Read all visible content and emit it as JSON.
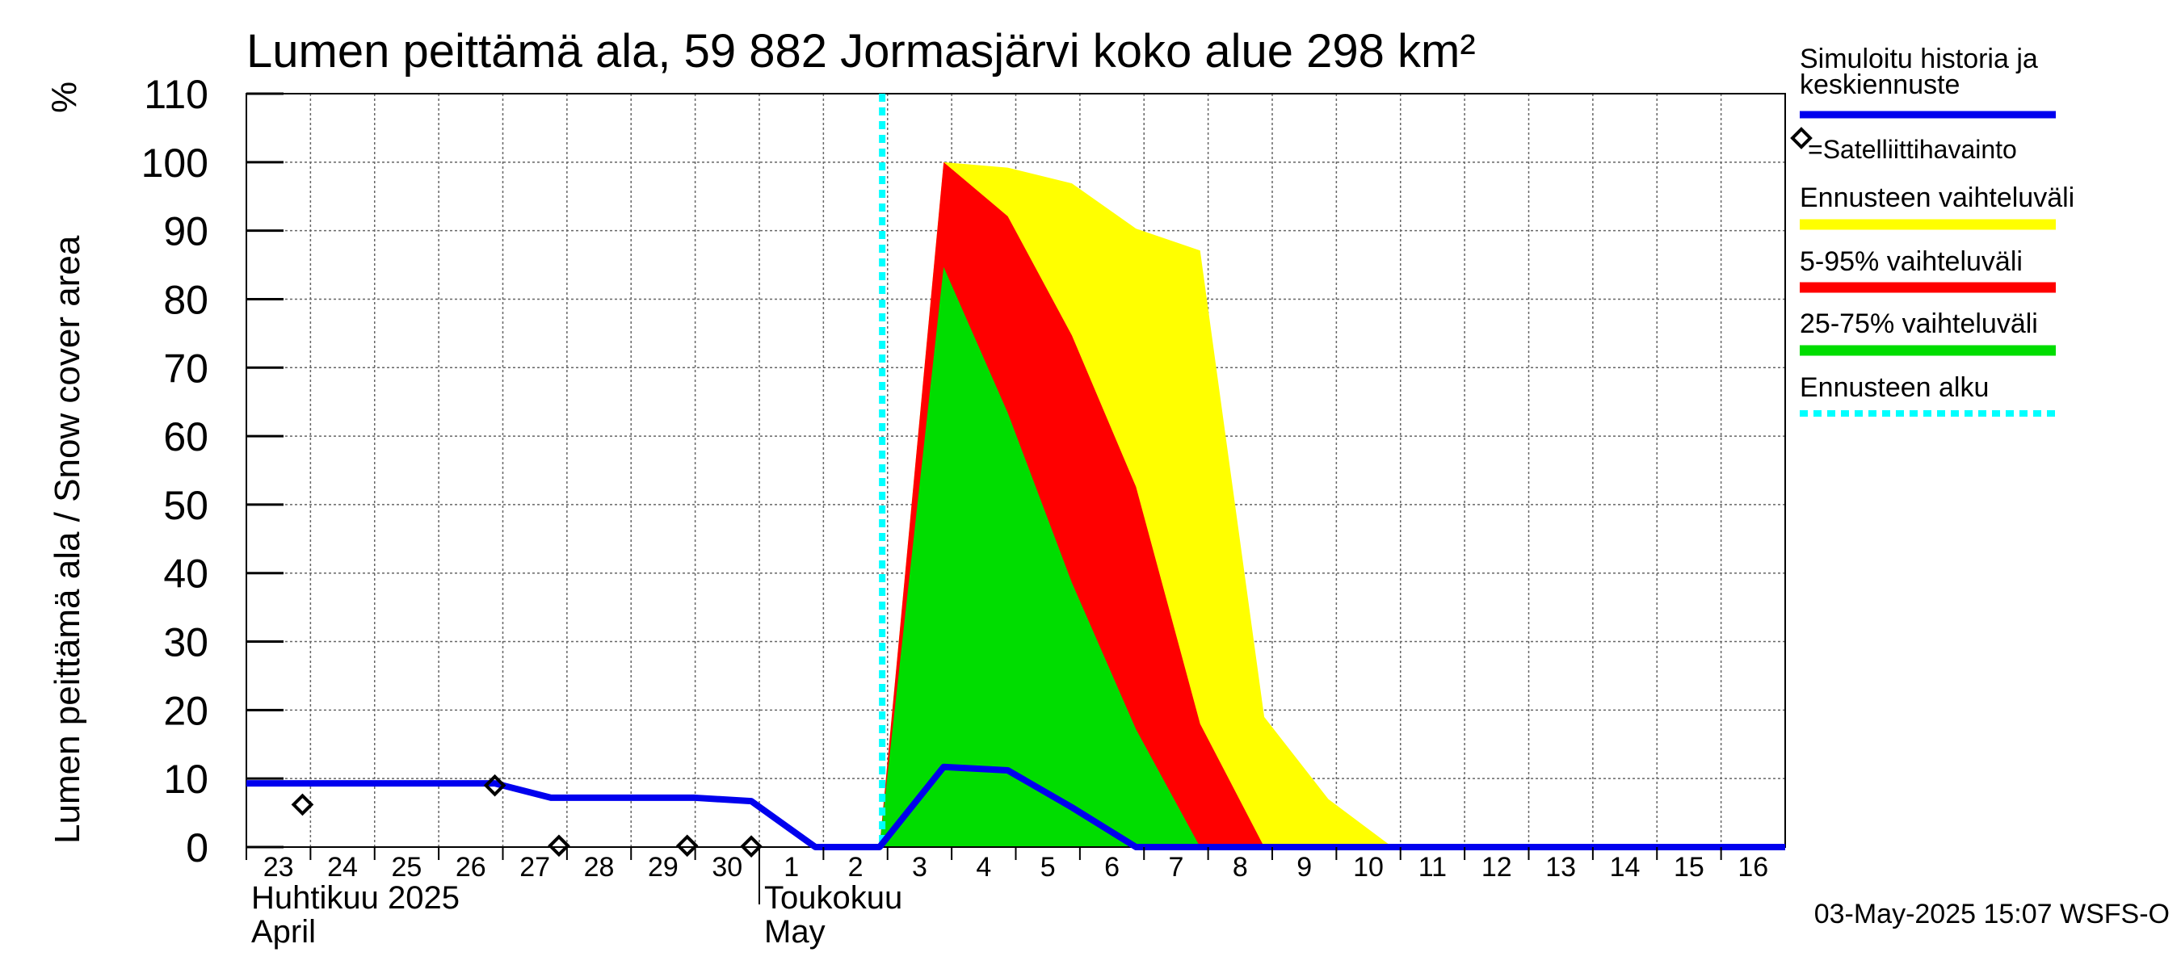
{
  "chart_data": {
    "type": "area",
    "title": "Lumen peittämä ala, 59 882 Jormasjärvi koko alue 298 km²",
    "ylabel": "Lumen peittämä ala / Snow cover area",
    "yunit": "%",
    "ylim": [
      0,
      110
    ],
    "yticks": [
      0,
      10,
      20,
      30,
      40,
      50,
      60,
      70,
      80,
      90,
      100,
      110
    ],
    "xlim": [
      "2025-04-23",
      "2025-05-17"
    ],
    "xticks": [
      {
        "date": "2025-04-23",
        "label": "23"
      },
      {
        "date": "2025-04-24",
        "label": "24"
      },
      {
        "date": "2025-04-25",
        "label": "25"
      },
      {
        "date": "2025-04-26",
        "label": "26"
      },
      {
        "date": "2025-04-27",
        "label": "27"
      },
      {
        "date": "2025-04-28",
        "label": "28"
      },
      {
        "date": "2025-04-29",
        "label": "29"
      },
      {
        "date": "2025-04-30",
        "label": "30"
      },
      {
        "date": "2025-05-01",
        "label": "1"
      },
      {
        "date": "2025-05-02",
        "label": "2"
      },
      {
        "date": "2025-05-03",
        "label": "3"
      },
      {
        "date": "2025-05-04",
        "label": "4"
      },
      {
        "date": "2025-05-05",
        "label": "5"
      },
      {
        "date": "2025-05-06",
        "label": "6"
      },
      {
        "date": "2025-05-07",
        "label": "7"
      },
      {
        "date": "2025-05-08",
        "label": "8"
      },
      {
        "date": "2025-05-09",
        "label": "9"
      },
      {
        "date": "2025-05-10",
        "label": "10"
      },
      {
        "date": "2025-05-11",
        "label": "11"
      },
      {
        "date": "2025-05-12",
        "label": "12"
      },
      {
        "date": "2025-05-13",
        "label": "13"
      },
      {
        "date": "2025-05-14",
        "label": "14"
      },
      {
        "date": "2025-05-15",
        "label": "15"
      },
      {
        "date": "2025-05-16",
        "label": "16"
      }
    ],
    "month_labels": [
      {
        "date": "2025-04-23",
        "line1": "Huhtikuu  2025",
        "line2": "April"
      },
      {
        "date": "2025-05-01",
        "line1": "Toukokuu",
        "line2": "May"
      }
    ],
    "month_divider": "2025-05-01",
    "forecast_start": "2025-05-02T22:00",
    "grid": true,
    "legend": {
      "placement": "right",
      "items": [
        {
          "label": "Simuloitu historia ja keskiennuste",
          "lines": [
            "Simuloitu historia ja",
            "keskiennuste"
          ],
          "kind": "line",
          "color": "#0000ee"
        },
        {
          "label": "=Satelliittihavainto",
          "kind": "marker",
          "color": "#000000"
        },
        {
          "label": "Ennusteen vaihteluväli",
          "kind": "band",
          "color": "#ffff00"
        },
        {
          "label": "5-95% vaihteluväli",
          "kind": "band",
          "color": "#ff0000"
        },
        {
          "label": "25-75% vaihteluväli",
          "kind": "band",
          "color": "#00dd00"
        },
        {
          "label": "Ennusteen alku",
          "kind": "dashed",
          "color": "#00ffff"
        }
      ]
    },
    "series": [
      {
        "name": "Simuloitu historia ja keskiennuste",
        "kind": "line",
        "color": "#0000ee",
        "points": [
          [
            "2025-04-23T00:00",
            9.3
          ],
          [
            "2025-04-26T21:00",
            9.3
          ],
          [
            "2025-04-27T18:00",
            7.2
          ],
          [
            "2025-04-30T00:00",
            7.2
          ],
          [
            "2025-04-30T21:00",
            6.7
          ],
          [
            "2025-05-01T21:00",
            0
          ],
          [
            "2025-05-02T21:00",
            0
          ],
          [
            "2025-05-03T21:00",
            11.7
          ],
          [
            "2025-05-04T21:00",
            11.2
          ],
          [
            "2025-05-05T21:00",
            5.8
          ],
          [
            "2025-05-06T21:00",
            0
          ],
          [
            "2025-05-17T00:00",
            0
          ]
        ]
      },
      {
        "name": "Satelliittihavainto",
        "kind": "marker",
        "color": "#000000",
        "points": [
          [
            "2025-04-23T21:00",
            6.2
          ],
          [
            "2025-04-26T21:00",
            9.0
          ],
          [
            "2025-04-27T21:00",
            0.2
          ],
          [
            "2025-04-29T21:00",
            0.2
          ],
          [
            "2025-04-30T21:00",
            0.1
          ]
        ]
      },
      {
        "name": "Ennusteen vaihteluväli",
        "kind": "band",
        "color": "#ffff00",
        "upper": [
          [
            "2025-05-02T21:00",
            0
          ],
          [
            "2025-05-03T21:00",
            100
          ],
          [
            "2025-05-04T21:00",
            99.2
          ],
          [
            "2025-05-05T21:00",
            96.9
          ],
          [
            "2025-05-06T21:00",
            90.3
          ],
          [
            "2025-05-07T21:00",
            87.1
          ],
          [
            "2025-05-08T21:00",
            19
          ],
          [
            "2025-05-09T21:00",
            7
          ],
          [
            "2025-05-10T21:00",
            0
          ]
        ],
        "lower": [
          [
            "2025-05-02T21:00",
            0
          ],
          [
            "2025-05-10T21:00",
            0
          ]
        ]
      },
      {
        "name": "5-95% vaihteluväli",
        "kind": "band",
        "color": "#ff0000",
        "upper": [
          [
            "2025-05-02T21:00",
            0
          ],
          [
            "2025-05-03T21:00",
            100
          ],
          [
            "2025-05-04T21:00",
            92.1
          ],
          [
            "2025-05-05T21:00",
            74.7
          ],
          [
            "2025-05-06T21:00",
            52.6
          ],
          [
            "2025-05-07T21:00",
            18
          ],
          [
            "2025-05-08T21:00",
            0
          ]
        ],
        "lower": [
          [
            "2025-05-02T21:00",
            0
          ],
          [
            "2025-05-08T21:00",
            0
          ]
        ]
      },
      {
        "name": "25-75% vaihteluväli",
        "kind": "band",
        "color": "#00dd00",
        "upper": [
          [
            "2025-05-02T21:00",
            0
          ],
          [
            "2025-05-03T21:00",
            84.7
          ],
          [
            "2025-05-04T21:00",
            63.4
          ],
          [
            "2025-05-05T21:00",
            38.6
          ],
          [
            "2025-05-06T21:00",
            17.2
          ],
          [
            "2025-05-07T21:00",
            0
          ]
        ],
        "lower": [
          [
            "2025-05-02T21:00",
            0
          ],
          [
            "2025-05-07T21:00",
            0
          ]
        ]
      }
    ]
  },
  "footer": {
    "timestamp": "03-May-2025 15:07 WSFS-O"
  }
}
